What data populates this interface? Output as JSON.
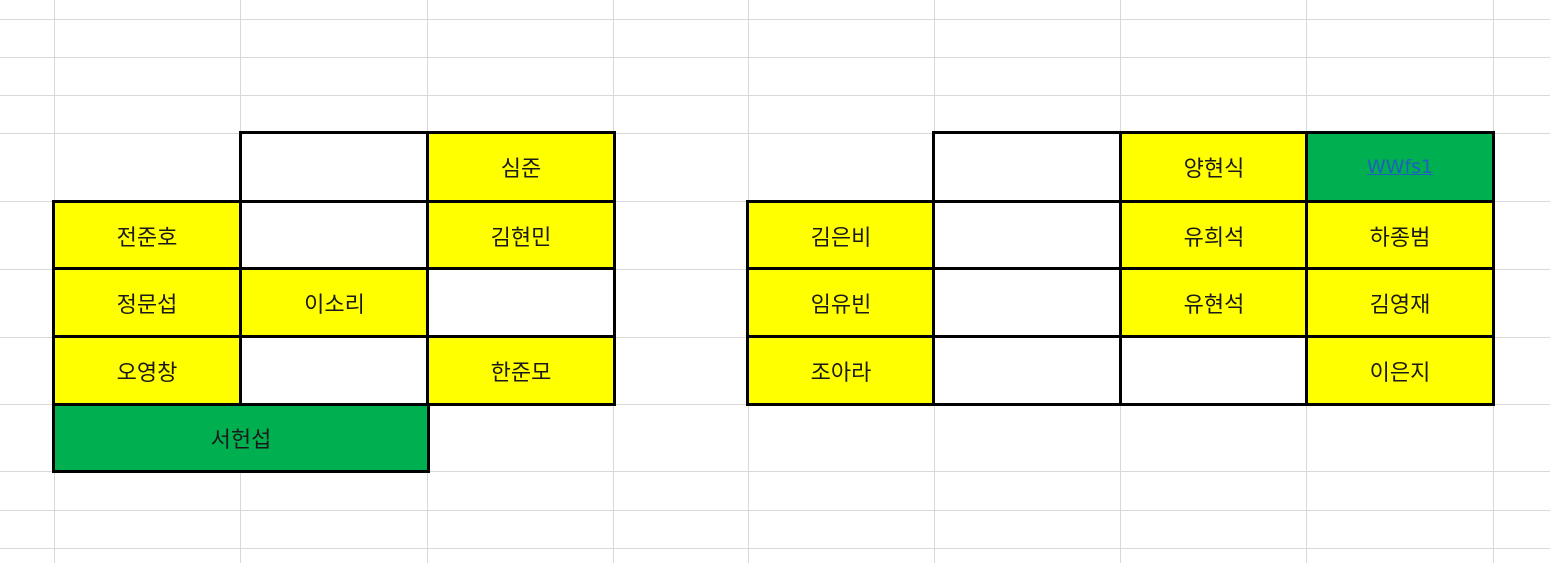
{
  "left_table": {
    "row1": [
      "",
      "",
      "심준"
    ],
    "row2": [
      "전준호",
      "",
      "김현민"
    ],
    "row3": [
      "정문섭",
      "이소리",
      ""
    ],
    "row4": [
      "오영창",
      "",
      "한준모"
    ],
    "footer": "서헌섭"
  },
  "right_table": {
    "row1": [
      "",
      "",
      "양현식",
      "WWfs1"
    ],
    "row2": [
      "김은비",
      "",
      "유희석",
      "하종범"
    ],
    "row3": [
      "임유빈",
      "",
      "유현석",
      "김영재"
    ],
    "row4": [
      "조아라",
      "",
      "",
      "이은지"
    ]
  },
  "colors": {
    "yellow": "#ffff00",
    "green": "#00b050",
    "gridline": "#d9d9d9",
    "link": "#1f5fbf"
  }
}
